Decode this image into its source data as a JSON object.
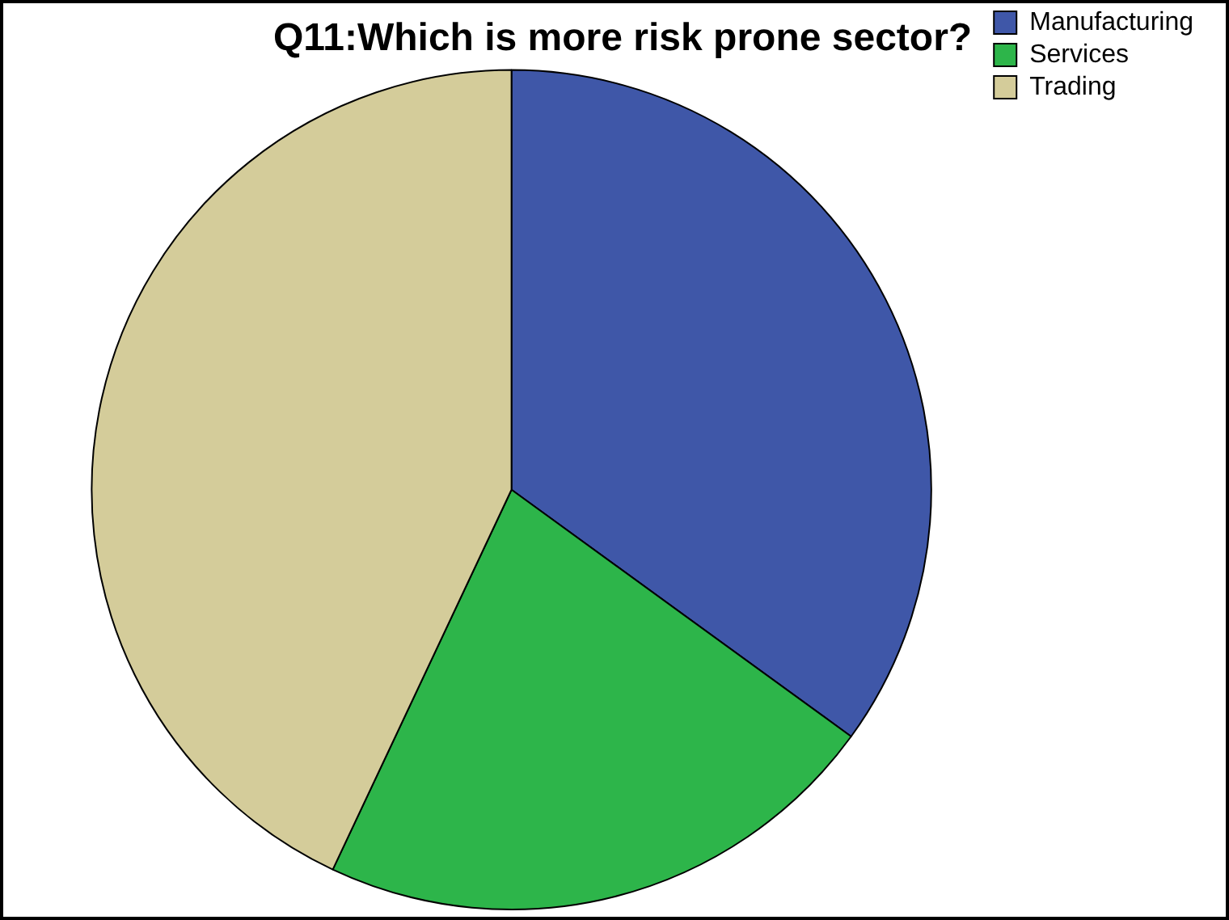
{
  "chart_data": {
    "type": "pie",
    "title": "Q11:Which is more risk prone sector?",
    "categories": [
      "Manufacturing",
      "Services",
      "Trading"
    ],
    "values": [
      35,
      22,
      43
    ],
    "colors": [
      "#3f57a8",
      "#2db54a",
      "#d4cc9a"
    ],
    "legend": "top right"
  }
}
